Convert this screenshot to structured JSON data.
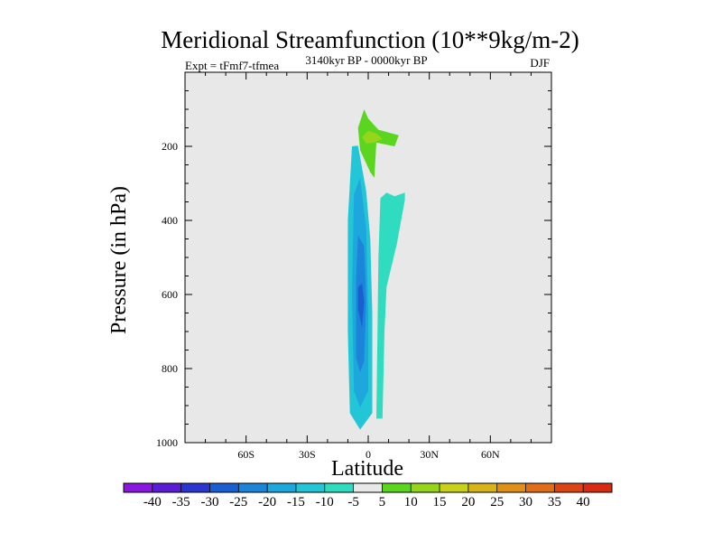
{
  "chart_data": {
    "type": "contour",
    "title": "Meridional Streamfunction (10**9kg/m-2)",
    "subtitle": "3140kyr BP - 0000kyr BP",
    "left_label": "Expt = tFmf7-tfmea",
    "right_label": "DJF",
    "xlabel": "Latitude",
    "ylabel": "Pressure (in hPa)",
    "xlim": [
      -90,
      90
    ],
    "ylim": [
      0,
      1000
    ],
    "y_inverted": true,
    "x_ticks": [
      {
        "value": -60,
        "label": "60S"
      },
      {
        "value": -30,
        "label": "30S"
      },
      {
        "value": 0,
        "label": "0"
      },
      {
        "value": 30,
        "label": "30N"
      },
      {
        "value": 60,
        "label": "60N"
      }
    ],
    "y_ticks": [
      {
        "value": 200,
        "label": "200"
      },
      {
        "value": 400,
        "label": "400"
      },
      {
        "value": 600,
        "label": "600"
      },
      {
        "value": 800,
        "label": "800"
      },
      {
        "value": 1000,
        "label": "1000"
      }
    ],
    "background_color": "#e8e8e8",
    "colorbar": {
      "levels": [
        -40,
        -35,
        -30,
        -25,
        -20,
        -15,
        -10,
        -5,
        5,
        10,
        15,
        20,
        25,
        30,
        35,
        40
      ],
      "colors": [
        "#8a17e0",
        "#5a1cd6",
        "#2b36d0",
        "#1a5fd2",
        "#1c84d9",
        "#1ea7dc",
        "#22c6d6",
        "#2fdcc0",
        "#e8e8e8",
        "#5ad61f",
        "#97d41c",
        "#c8d21a",
        "#d9b31a",
        "#e08f19",
        "#e06e18",
        "#dd4414",
        "#d92a12"
      ]
    },
    "contours": [
      {
        "name": "negative-cell-outer",
        "level": -10,
        "color": "#22c6d6",
        "points": [
          [
            -9,
            920
          ],
          [
            -10,
            700
          ],
          [
            -10,
            400
          ],
          [
            -8,
            200
          ],
          [
            -5,
            198
          ],
          [
            -1,
            320
          ],
          [
            1,
            450
          ],
          [
            2,
            650
          ],
          [
            2,
            920
          ],
          [
            -4,
            965
          ]
        ]
      },
      {
        "name": "negative-cell-mid",
        "level": -15,
        "color": "#1ea7dc",
        "points": [
          [
            -7,
            860
          ],
          [
            -8,
            600
          ],
          [
            -7,
            330
          ],
          [
            -4,
            285
          ],
          [
            -1,
            420
          ],
          [
            0,
            650
          ],
          [
            0,
            860
          ],
          [
            -4,
            905
          ]
        ]
      },
      {
        "name": "negative-cell-inner",
        "level": -20,
        "color": "#1c84d9",
        "points": [
          [
            -6,
            770
          ],
          [
            -6,
            560
          ],
          [
            -5,
            440
          ],
          [
            -2,
            470
          ],
          [
            -1,
            620
          ],
          [
            -2,
            780
          ],
          [
            -4,
            810
          ]
        ]
      },
      {
        "name": "negative-cell-core",
        "level": -25,
        "color": "#1a5fd2",
        "points": [
          [
            -5,
            640
          ],
          [
            -5,
            580
          ],
          [
            -3,
            570
          ],
          [
            -2,
            620
          ],
          [
            -3,
            690
          ]
        ]
      },
      {
        "name": "northern-negative-cell",
        "level": -5,
        "color": "#2fdcc0",
        "points": [
          [
            4,
            935
          ],
          [
            5,
            500
          ],
          [
            6,
            340
          ],
          [
            9,
            325
          ],
          [
            13,
            335
          ],
          [
            18,
            325
          ],
          [
            18,
            345
          ],
          [
            14,
            465
          ],
          [
            9,
            580
          ],
          [
            8,
            700
          ],
          [
            7,
            935
          ]
        ]
      },
      {
        "name": "upper-positive-cell-outer",
        "level": 5,
        "color": "#5ad61f",
        "points": [
          [
            -5,
            150
          ],
          [
            -2,
            100
          ],
          [
            0,
            125
          ],
          [
            5,
            155
          ],
          [
            15,
            170
          ],
          [
            13,
            200
          ],
          [
            4,
            190
          ],
          [
            3,
            285
          ],
          [
            1,
            270
          ],
          [
            -4,
            210
          ]
        ]
      },
      {
        "name": "upper-positive-cell-inner",
        "level": 10,
        "color": "#97d41c",
        "points": [
          [
            -3,
            175
          ],
          [
            0,
            158
          ],
          [
            4,
            165
          ],
          [
            7,
            180
          ],
          [
            3,
            190
          ],
          [
            -1,
            192
          ]
        ]
      }
    ]
  }
}
